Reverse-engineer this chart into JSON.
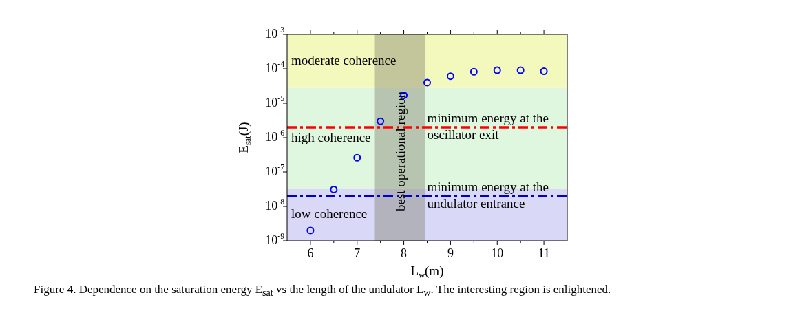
{
  "chart_data": {
    "type": "scatter",
    "xlabel": "L$_{w}$(m)",
    "ylabel": "E$_{sat}$(J)",
    "x": [
      6,
      6.5,
      7,
      7.5,
      8,
      8.5,
      9,
      9.5,
      10,
      10.5,
      11
    ],
    "series": [
      {
        "color": "#0000ff",
        "values": [
          2e-09,
          3.1e-08,
          2.6e-07,
          3e-06,
          1.7e-05,
          4e-05,
          6.1e-05,
          8.2e-05,
          9.1e-05,
          9.1e-05,
          8.5e-05
        ]
      }
    ],
    "marker": "circle",
    "log": "y",
    "grid": false,
    "legend": false,
    "xlim": [
      5.5,
      11.5
    ],
    "xticks": [
      6,
      7,
      8,
      9,
      10,
      11
    ],
    "ylim": [
      1e-09,
      0.001
    ],
    "yticks": [
      {
        "value": 1e-09,
        "label": "10$^{-9}$"
      },
      {
        "value": 1e-08,
        "label": "10$^{-8}$"
      },
      {
        "value": 1e-07,
        "label": "10$^{-7}$"
      },
      {
        "value": 1e-06,
        "label": "10$^{-6}$"
      },
      {
        "value": 1e-05,
        "label": "10$^{-5}$"
      },
      {
        "value": 0.0001,
        "label": "10$^{-4}$"
      },
      {
        "value": 0.001,
        "label": "10$^{-3}$"
      }
    ],
    "bands": [
      {
        "axis": "y",
        "from": 2.8e-05,
        "to": 0.001,
        "label": "moderate coherence",
        "color": "#f3f8bd"
      },
      {
        "axis": "y",
        "from": 3.2e-08,
        "to": 2.8e-05,
        "label": "high coherence",
        "color": "#dff7df"
      },
      {
        "axis": "y",
        "from": 1e-09,
        "to": 3.2e-08,
        "label": "low coherence",
        "color": "#d9d9f7"
      },
      {
        "axis": "x",
        "from": 7.38,
        "to": 8.45,
        "label": "best operational region",
        "color": "#7a7a6a"
      }
    ],
    "ref_lines": [
      {
        "axis": "y",
        "value": 2e-06,
        "label": "minimum energy at the\noscillator exit",
        "color": "#ff0000",
        "line_style": "dashed"
      },
      {
        "axis": "y",
        "value": 2e-08,
        "label": "minimum energy at the\nundulator entrance",
        "color": "#0000cc",
        "line_style": "dashed"
      }
    ],
    "annotations": [
      "Figure 4. Dependence on the saturation energy E$_{sat}$ vs the length of the undulator L$_{w}$. The interesting region is enlightened."
    ]
  }
}
